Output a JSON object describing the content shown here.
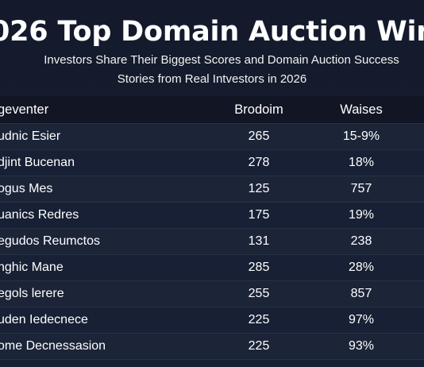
{
  "title": "026 Top Domain Auction Win",
  "subtitle": {
    "line1": "Investors Share Their Biggest Scores and Domain Auction Success",
    "line2": "Stories from Real Intvestors in 2026"
  },
  "table": {
    "headers": [
      "geventer",
      "Brodoim",
      "Waises"
    ],
    "rows": [
      {
        "name": "udnic Esier",
        "num": "265",
        "pct": "15-9%"
      },
      {
        "name": "djint Bucenan",
        "num": "278",
        "pct": "18%"
      },
      {
        "name": "ogus Mes",
        "num": "125",
        "pct": "757"
      },
      {
        "name": "uanics Redres",
        "num": "175",
        "pct": "19%"
      },
      {
        "name": "egudos Reumctos",
        "num": "131",
        "pct": "238"
      },
      {
        "name": "nghic Mane",
        "num": "285",
        "pct": "28%"
      },
      {
        "name": "egols lerere",
        "num": "255",
        "pct": "857"
      },
      {
        "name": "uden Iedecnece",
        "num": "225",
        "pct": "97%"
      },
      {
        "name": "ome Decnessasion",
        "num": "225",
        "pct": "93%"
      }
    ]
  },
  "colors": {
    "background": "#151b2c",
    "header_row": "#111524",
    "row": "#1c2438",
    "row_alt": "#172034",
    "divider": "#293145",
    "text": "#ffffff"
  }
}
